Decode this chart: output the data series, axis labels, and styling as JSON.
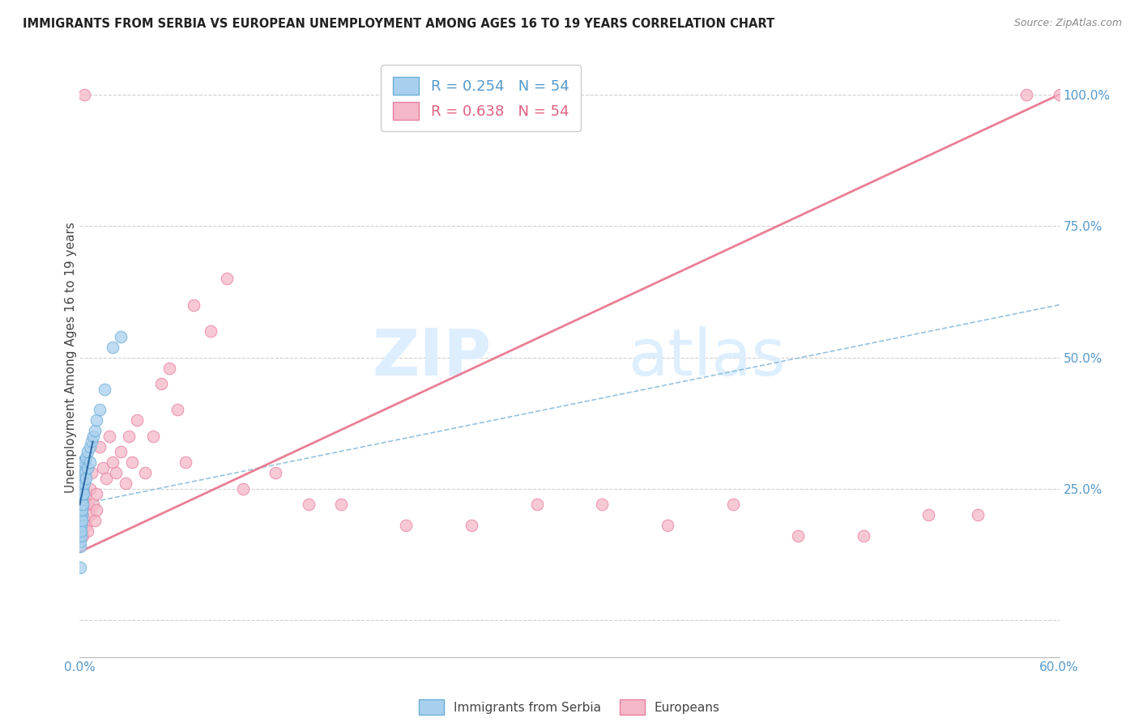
{
  "title": "IMMIGRANTS FROM SERBIA VS EUROPEAN UNEMPLOYMENT AMONG AGES 16 TO 19 YEARS CORRELATION CHART",
  "source": "Source: ZipAtlas.com",
  "ylabel": "Unemployment Among Ages 16 to 19 years",
  "ytick_labels": [
    "",
    "25.0%",
    "50.0%",
    "75.0%",
    "100.0%"
  ],
  "ytick_values": [
    0.0,
    0.25,
    0.5,
    0.75,
    1.0
  ],
  "xlim": [
    0.0,
    0.6
  ],
  "ylim": [
    -0.07,
    1.07
  ],
  "legend_label1": "R = 0.254   N = 54",
  "legend_label2": "R = 0.638   N = 54",
  "color_blue_fill": "#a8d0ee",
  "color_blue_edge": "#6baed6",
  "color_pink_fill": "#f4b8c8",
  "color_pink_edge": "#e87fa0",
  "color_blue_line": "#85b8d9",
  "color_pink_line": "#e8708a",
  "watermark_zip": "ZIP",
  "watermark_atlas": "atlas",
  "legend_bottom_1": "Immigrants from Serbia",
  "legend_bottom_2": "Europeans",
  "serbia_x": [
    0.0002,
    0.0003,
    0.0003,
    0.0004,
    0.0004,
    0.0005,
    0.0005,
    0.0006,
    0.0006,
    0.0007,
    0.0007,
    0.0008,
    0.0008,
    0.0009,
    0.0009,
    0.001,
    0.001,
    0.001,
    0.0011,
    0.0011,
    0.0012,
    0.0012,
    0.0013,
    0.0013,
    0.0014,
    0.0014,
    0.0015,
    0.0016,
    0.0016,
    0.0017,
    0.0018,
    0.0019,
    0.002,
    0.002,
    0.0022,
    0.0024,
    0.0025,
    0.003,
    0.003,
    0.0035,
    0.004,
    0.004,
    0.005,
    0.005,
    0.006,
    0.006,
    0.007,
    0.008,
    0.009,
    0.01,
    0.012,
    0.015,
    0.02,
    0.025
  ],
  "serbia_y": [
    0.18,
    0.14,
    0.1,
    0.22,
    0.17,
    0.2,
    0.15,
    0.25,
    0.19,
    0.22,
    0.16,
    0.28,
    0.21,
    0.24,
    0.18,
    0.3,
    0.23,
    0.17,
    0.26,
    0.2,
    0.28,
    0.22,
    0.25,
    0.19,
    0.27,
    0.21,
    0.23,
    0.29,
    0.22,
    0.26,
    0.28,
    0.24,
    0.3,
    0.25,
    0.27,
    0.29,
    0.24,
    0.3,
    0.26,
    0.28,
    0.31,
    0.27,
    0.32,
    0.29,
    0.33,
    0.3,
    0.34,
    0.35,
    0.36,
    0.38,
    0.4,
    0.44,
    0.52,
    0.54
  ],
  "european_x": [
    0.0005,
    0.001,
    0.001,
    0.002,
    0.002,
    0.003,
    0.003,
    0.004,
    0.004,
    0.005,
    0.005,
    0.006,
    0.006,
    0.007,
    0.008,
    0.009,
    0.01,
    0.01,
    0.012,
    0.014,
    0.016,
    0.018,
    0.02,
    0.022,
    0.025,
    0.028,
    0.03,
    0.032,
    0.035,
    0.04,
    0.045,
    0.05,
    0.055,
    0.06,
    0.065,
    0.07,
    0.08,
    0.09,
    0.1,
    0.12,
    0.14,
    0.16,
    0.2,
    0.24,
    0.28,
    0.32,
    0.36,
    0.4,
    0.44,
    0.48,
    0.52,
    0.55,
    0.58,
    0.6
  ],
  "european_y": [
    0.2,
    0.18,
    0.22,
    0.16,
    0.2,
    1.0,
    0.19,
    0.24,
    0.18,
    0.22,
    0.17,
    0.25,
    0.2,
    0.28,
    0.22,
    0.19,
    0.24,
    0.21,
    0.33,
    0.29,
    0.27,
    0.35,
    0.3,
    0.28,
    0.32,
    0.26,
    0.35,
    0.3,
    0.38,
    0.28,
    0.35,
    0.45,
    0.48,
    0.4,
    0.3,
    0.6,
    0.55,
    0.65,
    0.25,
    0.28,
    0.22,
    0.22,
    0.18,
    0.18,
    0.22,
    0.22,
    0.18,
    0.22,
    0.16,
    0.16,
    0.2,
    0.2,
    1.0,
    1.0
  ],
  "serbia_line_x": [
    0.0,
    0.6
  ],
  "serbia_line_y": [
    0.22,
    0.6
  ],
  "european_line_x": [
    0.0,
    0.6
  ],
  "european_line_y": [
    0.13,
    1.0
  ]
}
